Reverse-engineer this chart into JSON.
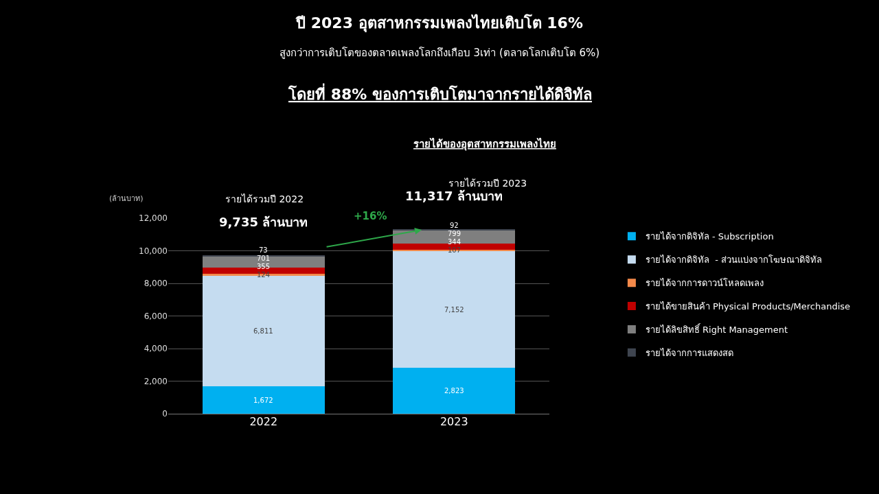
{
  "chart_data": {
    "type": "bar",
    "title": "ปี 2023 อุตสาหกรรมเพลงไทยเติบโต 16%",
    "subtitle": "สูงกว่าการเติบโตของตลาดเพลงโลกถึงเกือบ 3เท่า (ตลาดโลกเติบโต 6%)",
    "ylabel": "(ล้านบาท)",
    "categories": [
      "2022",
      "2023"
    ],
    "stacked": true,
    "series": [
      {
        "name": "รายได้จากดิจิทัล - Subscription",
        "color": "#00b0f0",
        "values": [
          1672,
          2823
        ],
        "value_labels": [
          "1,672",
          "2,823"
        ]
      },
      {
        "name": "รายได้จากดิจิทัล  - ส่วนแบ่งจากโฆษณาดิจิทัล",
        "color": "#c5dcf0",
        "values": [
          6811,
          7152
        ],
        "value_labels": [
          "6,811",
          "7,152"
        ]
      },
      {
        "name": "รายได้จากการดาวน์โหลดเพลง",
        "color": "#f4894a",
        "values": [
          124,
          107
        ],
        "value_labels": [
          "124",
          "107"
        ]
      },
      {
        "name": "รายได้ขายสินค้า Physical Products/Merchandise",
        "color": "#c00000",
        "values": [
          355,
          344
        ],
        "value_labels": [
          "355",
          "344"
        ]
      },
      {
        "name": "รายได้ลิขสิทธิ์ Right Management",
        "color": "#7f7f7f",
        "values": [
          701,
          799
        ],
        "value_labels": [
          "701",
          "799"
        ]
      },
      {
        "name": "รายได้จากการแสดงสด",
        "color": "#3f4550",
        "values": [
          73,
          92
        ],
        "value_labels": [
          "73",
          "92"
        ]
      }
    ],
    "totals": [
      "9,735 ล้านบาท",
      "11,317 ล้านบาท"
    ],
    "annotations": [
      "โดยที่ 88% ของการเติบโตมาจากรายได้ดิจิทัล",
      "รายได้ของอุตสาหกรรมเพลงไทย",
      "รายได้รวมปี 2022",
      "รายได้รวมปี 2023",
      "+16%"
    ],
    "ylim": [
      0,
      12000
    ],
    "yticks": [
      0,
      {
        "value": 2000,
        "label": "2,000"
      },
      {
        "value": 4000,
        "label": "4,000"
      },
      {
        "value": 6000,
        "label": "6,000"
      },
      {
        "value": 8000,
        "label": "8,000"
      },
      {
        "value": 10000,
        "label": "10,000"
      },
      {
        "value": 12000,
        "label": "12,000"
      }
    ],
    "grid": "y",
    "legend": "right"
  }
}
